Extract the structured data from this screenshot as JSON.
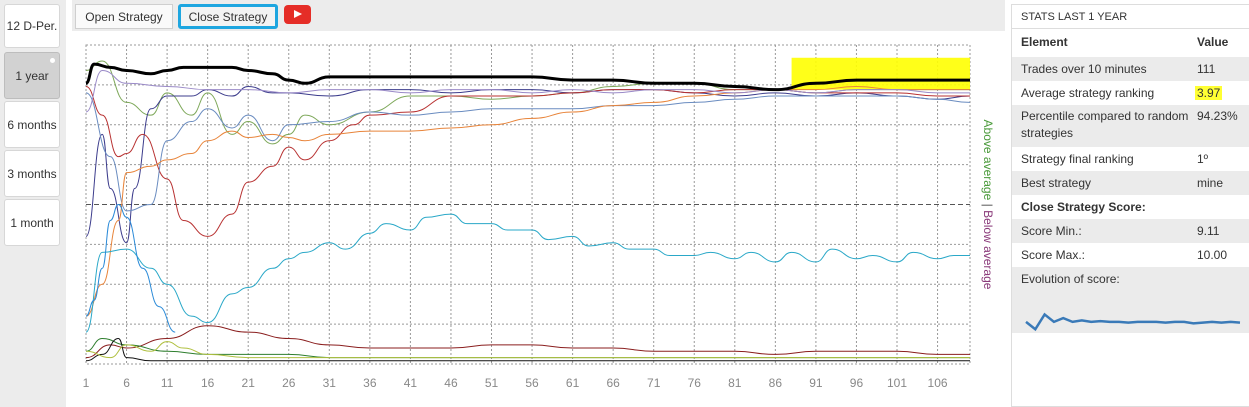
{
  "left_nav": {
    "items": [
      {
        "label": "12 D-Per.",
        "active": false
      },
      {
        "label": "1 year",
        "active": true
      },
      {
        "label": "6 months",
        "active": false
      },
      {
        "label": "3 months",
        "active": false
      },
      {
        "label": "1 month",
        "active": false
      }
    ]
  },
  "tabs": {
    "open_label": "Open Strategy",
    "close_label": "Close Strategy",
    "video_icon": "youtube-play-icon"
  },
  "chart_data": {
    "type": "line",
    "x_ticks": [
      "1",
      "6",
      "11",
      "16",
      "21",
      "26",
      "31",
      "36",
      "41",
      "46",
      "51",
      "56",
      "61",
      "66",
      "71",
      "76",
      "81",
      "86",
      "91",
      "96",
      "101",
      "106"
    ],
    "xlim": [
      1,
      110
    ],
    "side_label_above": "Above average",
    "side_label_separator": "|",
    "side_label_below": "Below average",
    "colors": {
      "above": "#4a9a3a",
      "below": "#8a3a7a",
      "highlight": "#ffff00",
      "bold_line": "#000000"
    },
    "series": [
      {
        "color": "#000000",
        "width": 3,
        "x": [
          1,
          2,
          4,
          6,
          9,
          11,
          13,
          16,
          19,
          21,
          24,
          26,
          28,
          31,
          36,
          41,
          46,
          51,
          56,
          61,
          66,
          71,
          76,
          81,
          86,
          91,
          96,
          101,
          106,
          110
        ],
        "y": [
          88,
          94,
          93,
          92,
          91,
          92,
          93,
          93,
          93,
          92,
          91,
          89,
          88,
          90,
          90,
          90,
          90,
          90,
          90,
          89,
          89,
          88,
          88,
          87,
          86,
          88,
          89,
          89,
          89,
          89
        ]
      },
      {
        "color": "#7ea85a",
        "width": 1,
        "x": [
          1,
          3,
          6,
          9,
          11,
          14,
          16,
          19,
          21,
          24,
          26,
          28,
          31,
          36,
          41,
          46,
          51,
          56,
          61,
          66,
          71,
          76,
          81,
          86,
          91,
          96,
          101,
          106,
          110
        ],
        "y": [
          92,
          95,
          82,
          78,
          85,
          78,
          85,
          72,
          76,
          69,
          72,
          78,
          75,
          79,
          84,
          84,
          83,
          84,
          85,
          87,
          88,
          88,
          86,
          86,
          85,
          86,
          86,
          86,
          86
        ]
      },
      {
        "color": "#3c3c8c",
        "width": 1,
        "x": [
          1,
          3,
          4,
          6,
          7,
          9,
          11,
          14,
          16,
          19,
          21,
          24,
          26,
          31,
          36,
          41,
          46,
          51,
          56,
          61,
          66,
          71,
          76,
          81,
          86,
          91,
          96,
          101,
          106,
          110
        ],
        "y": [
          40,
          72,
          55,
          38,
          55,
          80,
          84,
          84,
          86,
          84,
          87,
          85,
          85,
          84,
          86,
          86,
          85,
          86,
          86,
          85,
          86,
          86,
          85,
          84,
          85,
          84,
          85,
          84,
          83,
          84
        ]
      },
      {
        "color": "#b83232",
        "width": 1,
        "x": [
          1,
          3,
          5,
          6,
          8,
          11,
          13,
          16,
          19,
          21,
          24,
          26,
          28,
          31,
          34,
          36,
          41,
          46,
          51,
          56,
          61,
          66,
          71,
          76,
          81,
          86,
          91,
          96,
          101,
          106,
          110
        ],
        "y": [
          87,
          78,
          65,
          66,
          72,
          58,
          45,
          40,
          47,
          57,
          62,
          68,
          64,
          70,
          75,
          78,
          79,
          84,
          84,
          84,
          85,
          86,
          86,
          85,
          86,
          86,
          85,
          85,
          85,
          84,
          84
        ]
      },
      {
        "color": "#6a8cc0",
        "width": 1,
        "x": [
          1,
          4,
          6,
          9,
          11,
          14,
          16,
          19,
          21,
          24,
          26,
          31,
          36,
          41,
          46,
          51,
          56,
          61,
          66,
          71,
          76,
          81,
          86,
          91,
          96,
          101,
          106,
          110
        ],
        "y": [
          85,
          65,
          48,
          50,
          70,
          76,
          80,
          74,
          78,
          70,
          75,
          76,
          79,
          78,
          79,
          80,
          80,
          80,
          81,
          81,
          82,
          83,
          84,
          84,
          84,
          84,
          83,
          82
        ]
      },
      {
        "color": "#e8843a",
        "width": 1,
        "x": [
          1,
          3,
          5,
          6,
          9,
          11,
          14,
          16,
          19,
          21,
          24,
          26,
          28,
          31,
          36,
          41,
          46,
          51,
          56,
          61,
          66,
          71,
          76,
          81,
          86,
          91,
          96,
          101,
          106,
          110
        ],
        "y": [
          15,
          25,
          45,
          60,
          62,
          64,
          66,
          70,
          73,
          71,
          72,
          71,
          70,
          72,
          73,
          73,
          74,
          75,
          77,
          79,
          81,
          82,
          84,
          85,
          86,
          86,
          87,
          86,
          86,
          86
        ]
      },
      {
        "color": "#9a8ac8",
        "width": 1,
        "x": [
          1,
          3,
          6,
          11,
          16,
          21,
          26,
          31,
          36,
          41,
          46,
          51,
          56,
          61,
          66,
          71,
          76,
          81,
          86,
          91,
          96,
          101,
          106,
          110
        ],
        "y": [
          79,
          92,
          88,
          87,
          86,
          86,
          85,
          86,
          86,
          85,
          86,
          86,
          85,
          86,
          85,
          86,
          86,
          85,
          86,
          85,
          86,
          86,
          85,
          85
        ]
      },
      {
        "color": "#2aa8c8",
        "width": 1,
        "x": [
          1,
          3,
          6,
          9,
          11,
          14,
          16,
          19,
          21,
          24,
          26,
          28,
          31,
          33,
          36,
          38,
          41,
          43,
          46,
          48,
          51,
          53,
          56,
          58,
          61,
          63,
          66,
          68,
          71,
          73,
          76,
          78,
          81,
          83,
          86,
          88,
          91,
          93,
          96,
          98,
          101,
          103,
          106,
          108,
          110
        ],
        "y": [
          10,
          35,
          36,
          30,
          25,
          15,
          13,
          22,
          24,
          30,
          33,
          35,
          38,
          36,
          41,
          44,
          42,
          46,
          47,
          44,
          44,
          42,
          42,
          39,
          40,
          37,
          38,
          36,
          36,
          34,
          34,
          35,
          33,
          35,
          32,
          35,
          32,
          36,
          33,
          34,
          32,
          35,
          33,
          34,
          34
        ]
      },
      {
        "color": "#2a8ad8",
        "width": 1,
        "x": [
          1,
          2,
          3,
          4,
          5,
          6,
          8,
          10,
          12
        ],
        "y": [
          15,
          20,
          30,
          45,
          50,
          46,
          30,
          18,
          10
        ]
      },
      {
        "color": "#8a1e1e",
        "width": 1,
        "x": [
          1,
          4,
          6,
          11,
          16,
          21,
          26,
          31,
          36,
          41,
          46,
          51,
          56,
          61,
          66,
          71,
          76,
          81,
          86,
          91,
          96,
          101,
          106,
          110
        ],
        "y": [
          2,
          6,
          5,
          8,
          12,
          10,
          8,
          6,
          5,
          5,
          5,
          6,
          6,
          5,
          5,
          4,
          4,
          4,
          3,
          4,
          4,
          4,
          3,
          3
        ]
      },
      {
        "color": "#2e7e2e",
        "width": 1,
        "x": [
          1,
          3,
          6,
          11,
          16,
          21,
          26,
          31,
          36,
          41,
          46,
          51,
          56,
          61,
          66,
          71,
          76,
          81,
          86,
          91,
          96,
          101,
          106,
          110
        ],
        "y": [
          4,
          8,
          6,
          4,
          3,
          3,
          3,
          2,
          2,
          2,
          2,
          2,
          2,
          2,
          2,
          2,
          2,
          2,
          2,
          2,
          2,
          2,
          2,
          2
        ]
      },
      {
        "color": "#111111",
        "width": 1,
        "x": [
          1,
          3,
          5,
          6,
          9,
          11,
          16,
          21,
          26,
          31,
          36,
          46,
          61,
          76,
          91,
          106,
          110
        ],
        "y": [
          1,
          3,
          8,
          2,
          1,
          1,
          1,
          1,
          1,
          1,
          1,
          1,
          1,
          1,
          1,
          1,
          1
        ]
      },
      {
        "color": "#b0c040",
        "width": 1,
        "x": [
          1,
          4,
          6,
          9,
          11,
          13,
          16,
          21,
          26,
          31,
          36,
          46,
          61,
          76,
          91,
          106,
          110
        ],
        "y": [
          4,
          2,
          6,
          4,
          7,
          5,
          3,
          2,
          2,
          2,
          2,
          2,
          2,
          2,
          2,
          2,
          2
        ]
      }
    ],
    "grid": true,
    "legend": "none",
    "average_line_value": 50,
    "ylim": [
      0,
      100
    ]
  },
  "stats": {
    "title": "STATS LAST 1 YEAR",
    "header_element": "Element",
    "header_value": "Value",
    "rows": [
      {
        "label": "Trades over 10 minutes",
        "value": "111"
      },
      {
        "label": "Average strategy ranking",
        "value": "3.97"
      },
      {
        "label": "Percentile compared to random strategies",
        "value": "94.23%"
      },
      {
        "label": "Strategy final ranking",
        "value": "1º"
      },
      {
        "label": "Best strategy",
        "value": "mine"
      }
    ],
    "score_title": "Close Strategy Score:",
    "score_min_label": "Score Min.:",
    "score_min_value": "9.11",
    "score_max_label": "Score Max.:",
    "score_max_value": "10.00",
    "evolution_label": "Evolution of score:",
    "sparkline_color": "#3a7ab8",
    "sparkline": [
      9.7,
      9.6,
      9.8,
      9.7,
      9.75,
      9.7,
      9.72,
      9.7,
      9.71,
      9.7,
      9.7,
      9.69,
      9.7,
      9.7,
      9.7,
      9.69,
      9.7,
      9.7,
      9.68,
      9.69,
      9.7,
      9.69,
      9.7,
      9.69
    ]
  }
}
